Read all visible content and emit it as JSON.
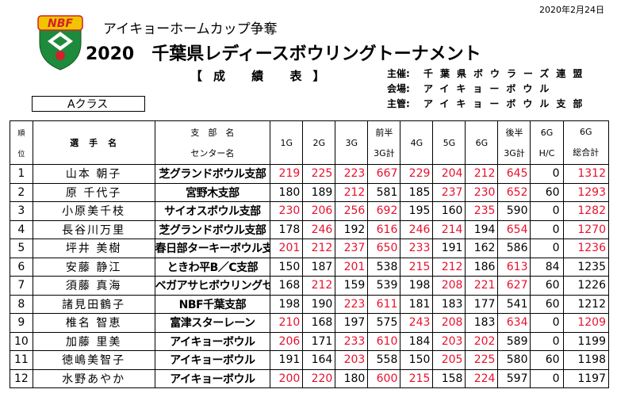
{
  "header": {
    "date": "2020年2月24日",
    "subtitle": "アイキョーホームカップ争奪",
    "title": "2020　千葉県レディースボウリングトーナメント",
    "report": "【成 績 表】",
    "logo_text": "NBF",
    "organizer": [
      {
        "label": "主催:",
        "value": "千葉県ボウラーズ連盟"
      },
      {
        "label": "会場:",
        "value": "アイキョーボウル"
      },
      {
        "label": "主管:",
        "value": "アイキョーボウル支部"
      }
    ],
    "class_label": "Aクラス"
  },
  "colors": {
    "highlight": "#e8112d",
    "logo_red": "#d3202a",
    "logo_green": "#1e8a3c",
    "logo_yellow": "#f2c400"
  },
  "table": {
    "headers": {
      "rank_top": "順",
      "rank_bottom": "位",
      "player": "選　手　名",
      "branch_top": "支　部　名",
      "branch_bottom": "センター名",
      "g1": "1G",
      "g2": "2G",
      "g3": "3G",
      "first_half_top": "前半",
      "first_half_bottom": "3G計",
      "g4": "4G",
      "g5": "5G",
      "g6": "6G",
      "second_half_top": "後半",
      "second_half_bottom": "3G計",
      "hc_top": "6G",
      "hc_bottom": "H/C",
      "total_top": "6G",
      "total_bottom": "総合計"
    },
    "rows": [
      {
        "rank": "1",
        "name": "山本 朝子",
        "branch": "芝グランドボウル支部",
        "g1": "219",
        "g2": "225",
        "g3": "223",
        "s1": "667",
        "g4": "229",
        "g5": "204",
        "g6": "212",
        "s2": "645",
        "hc": "0",
        "total": "1312",
        "red": [
          1,
          1,
          1,
          1,
          1,
          1,
          1,
          1,
          0,
          1
        ]
      },
      {
        "rank": "2",
        "name": "原 千代子",
        "branch": "宮野木支部",
        "g1": "180",
        "g2": "189",
        "g3": "212",
        "s1": "581",
        "g4": "185",
        "g5": "237",
        "g6": "230",
        "s2": "652",
        "hc": "60",
        "total": "1293",
        "red": [
          0,
          0,
          1,
          0,
          0,
          1,
          1,
          1,
          0,
          1
        ]
      },
      {
        "rank": "3",
        "name": "小原美千枝",
        "branch": "サイオスボウル支部",
        "g1": "230",
        "g2": "206",
        "g3": "256",
        "s1": "692",
        "g4": "195",
        "g5": "160",
        "g6": "235",
        "s2": "590",
        "hc": "0",
        "total": "1282",
        "red": [
          1,
          1,
          1,
          1,
          0,
          0,
          1,
          0,
          0,
          1
        ]
      },
      {
        "rank": "4",
        "name": "長谷川万里",
        "branch": "芝グランドボウル支部",
        "g1": "178",
        "g2": "246",
        "g3": "192",
        "s1": "616",
        "g4": "246",
        "g5": "214",
        "g6": "194",
        "s2": "654",
        "hc": "0",
        "total": "1270",
        "red": [
          0,
          1,
          0,
          1,
          1,
          1,
          0,
          1,
          0,
          1
        ]
      },
      {
        "rank": "5",
        "name": "坪井 美樹",
        "branch": "春日部ターキーボウル支部",
        "g1": "201",
        "g2": "212",
        "g3": "237",
        "s1": "650",
        "g4": "233",
        "g5": "191",
        "g6": "162",
        "s2": "586",
        "hc": "0",
        "total": "1236",
        "red": [
          1,
          1,
          1,
          1,
          1,
          0,
          0,
          0,
          0,
          1
        ]
      },
      {
        "rank": "6",
        "name": "安藤 静江",
        "branch": "ときわ平B／C支部",
        "g1": "150",
        "g2": "187",
        "g3": "201",
        "s1": "538",
        "g4": "215",
        "g5": "212",
        "g6": "186",
        "s2": "613",
        "hc": "84",
        "total": "1235",
        "red": [
          0,
          0,
          1,
          0,
          1,
          1,
          0,
          1,
          0,
          0
        ]
      },
      {
        "rank": "7",
        "name": "須藤 真海",
        "branch": "ベガアサヒボウリングセンター",
        "g1": "168",
        "g2": "212",
        "g3": "159",
        "s1": "539",
        "g4": "198",
        "g5": "208",
        "g6": "221",
        "s2": "627",
        "hc": "60",
        "total": "1226",
        "red": [
          0,
          1,
          0,
          0,
          0,
          1,
          1,
          1,
          0,
          0
        ]
      },
      {
        "rank": "8",
        "name": "諸見田鶴子",
        "branch": "NBF千葉支部",
        "g1": "198",
        "g2": "190",
        "g3": "223",
        "s1": "611",
        "g4": "181",
        "g5": "183",
        "g6": "177",
        "s2": "541",
        "hc": "60",
        "total": "1212",
        "red": [
          0,
          0,
          1,
          1,
          0,
          0,
          0,
          0,
          0,
          0
        ]
      },
      {
        "rank": "9",
        "name": "椎名 智恵",
        "branch": "富津スターレーン",
        "g1": "210",
        "g2": "168",
        "g3": "197",
        "s1": "575",
        "g4": "243",
        "g5": "208",
        "g6": "183",
        "s2": "634",
        "hc": "0",
        "total": "1209",
        "red": [
          1,
          0,
          0,
          0,
          1,
          1,
          0,
          1,
          0,
          1
        ]
      },
      {
        "rank": "10",
        "name": "加藤 里美",
        "branch": "アイキョーボウル",
        "g1": "206",
        "g2": "171",
        "g3": "233",
        "s1": "610",
        "g4": "184",
        "g5": "203",
        "g6": "202",
        "s2": "589",
        "hc": "0",
        "total": "1199",
        "red": [
          1,
          0,
          1,
          1,
          0,
          1,
          1,
          0,
          0,
          0
        ]
      },
      {
        "rank": "11",
        "name": "徳嶋美智子",
        "branch": "アイキョーボウル",
        "g1": "191",
        "g2": "164",
        "g3": "203",
        "s1": "558",
        "g4": "150",
        "g5": "205",
        "g6": "225",
        "s2": "580",
        "hc": "60",
        "total": "1198",
        "red": [
          0,
          0,
          1,
          0,
          0,
          1,
          1,
          0,
          0,
          0
        ]
      },
      {
        "rank": "12",
        "name": "水野あやか",
        "branch": "アイキョーボウル",
        "g1": "200",
        "g2": "220",
        "g3": "180",
        "s1": "600",
        "g4": "215",
        "g5": "158",
        "g6": "224",
        "s2": "597",
        "hc": "0",
        "total": "1197",
        "red": [
          1,
          1,
          0,
          1,
          1,
          0,
          1,
          0,
          0,
          0
        ]
      }
    ]
  }
}
